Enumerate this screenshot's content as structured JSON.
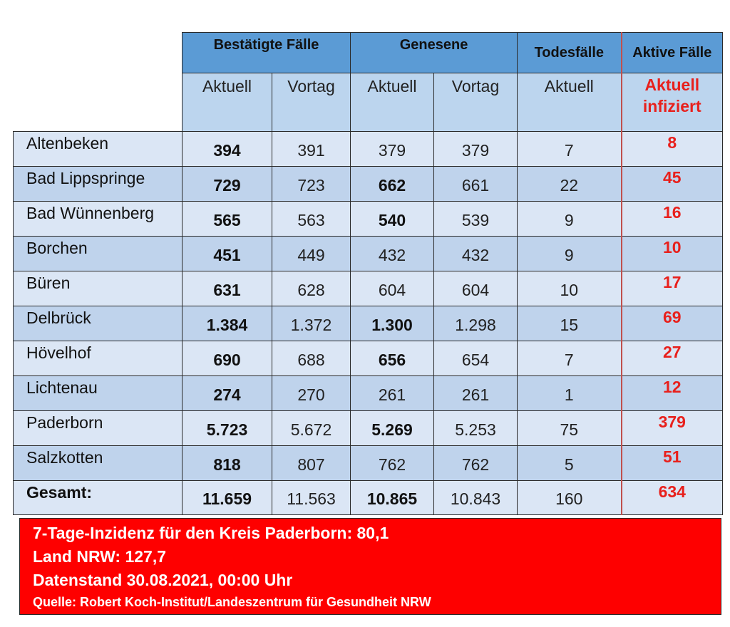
{
  "headers": {
    "group_bestaetigt": "Bestätigte Fälle",
    "group_genesene": "Genesene",
    "group_todesfaelle": "Todesfälle",
    "group_aktive": "Aktive Fälle",
    "sub_aktuell_1": "Aktuell",
    "sub_vortag_1": "Vortag",
    "sub_aktuell_2": "Aktuell",
    "sub_vortag_2": "Vortag",
    "sub_aktuell_3": "Aktuell",
    "sub_aktuell_infiziert": "Aktuell infiziert"
  },
  "rows": [
    {
      "name": "Altenbeken",
      "best_aktuell": "394",
      "best_vortag": "391",
      "gen_aktuell": "379",
      "gen_vortag": "379",
      "tod_aktuell": "7",
      "aktiv": "8"
    },
    {
      "name": "Bad Lippspringe",
      "best_aktuell": "729",
      "best_vortag": "723",
      "gen_aktuell": "662",
      "gen_vortag": "661",
      "tod_aktuell": "22",
      "aktiv": "45"
    },
    {
      "name": "Bad Wünnenberg",
      "best_aktuell": "565",
      "best_vortag": "563",
      "gen_aktuell": "540",
      "gen_vortag": "539",
      "tod_aktuell": "9",
      "aktiv": "16"
    },
    {
      "name": "Borchen",
      "best_aktuell": "451",
      "best_vortag": "449",
      "gen_aktuell": "432",
      "gen_vortag": "432",
      "tod_aktuell": "9",
      "aktiv": "10"
    },
    {
      "name": "Büren",
      "best_aktuell": "631",
      "best_vortag": "628",
      "gen_aktuell": "604",
      "gen_vortag": "604",
      "tod_aktuell": "10",
      "aktiv": "17"
    },
    {
      "name": "Delbrück",
      "best_aktuell": "1.384",
      "best_vortag": "1.372",
      "gen_aktuell": "1.300",
      "gen_vortag": "1.298",
      "tod_aktuell": "15",
      "aktiv": "69"
    },
    {
      "name": "Hövelhof",
      "best_aktuell": "690",
      "best_vortag": "688",
      "gen_aktuell": "656",
      "gen_vortag": "654",
      "tod_aktuell": "7",
      "aktiv": "27"
    },
    {
      "name": "Lichtenau",
      "best_aktuell": "274",
      "best_vortag": "270",
      "gen_aktuell": "261",
      "gen_vortag": "261",
      "tod_aktuell": "1",
      "aktiv": "12"
    },
    {
      "name": "Paderborn",
      "best_aktuell": "5.723",
      "best_vortag": "5.672",
      "gen_aktuell": "5.269",
      "gen_vortag": "5.253",
      "tod_aktuell": "75",
      "aktiv": "379"
    },
    {
      "name": "Salzkotten",
      "best_aktuell": "818",
      "best_vortag": "807",
      "gen_aktuell": "762",
      "gen_vortag": "762",
      "tod_aktuell": "5",
      "aktiv": "51"
    }
  ],
  "total": {
    "name": "Gesamt:",
    "best_aktuell": "11.659",
    "best_vortag": "11.563",
    "gen_aktuell": "10.865",
    "gen_vortag": "10.843",
    "tod_aktuell": "160",
    "aktiv": "634"
  },
  "footer": {
    "inzidenz_kreis": "7-Tage-Inzidenz für den Kreis Paderborn: 80,1",
    "land_nrw": "Land NRW: 127,7",
    "datenstand": "Datenstand 30.08.2021, 00:00 Uhr",
    "quelle": "Quelle: Robert Koch-Institut/Landeszentrum für Gesundheit NRW"
  },
  "colors": {
    "header_dark_blue": "#5b9bd5",
    "header_light_blue": "#bcd5ee",
    "row_light": "#dbe6f5",
    "row_dark": "#bfd3ec",
    "highlight_red": "#e8201c",
    "footer_red": "#fe0000"
  }
}
